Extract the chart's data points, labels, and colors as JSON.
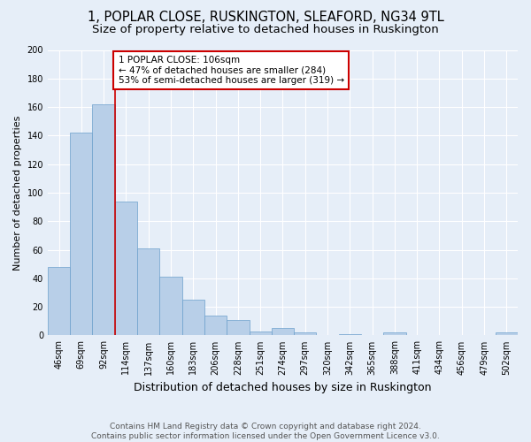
{
  "title1": "1, POPLAR CLOSE, RUSKINGTON, SLEAFORD, NG34 9TL",
  "title2": "Size of property relative to detached houses in Ruskington",
  "xlabel": "Distribution of detached houses by size in Ruskington",
  "ylabel": "Number of detached properties",
  "bar_labels": [
    "46sqm",
    "69sqm",
    "92sqm",
    "114sqm",
    "137sqm",
    "160sqm",
    "183sqm",
    "206sqm",
    "228sqm",
    "251sqm",
    "274sqm",
    "297sqm",
    "320sqm",
    "342sqm",
    "365sqm",
    "388sqm",
    "411sqm",
    "434sqm",
    "456sqm",
    "479sqm",
    "502sqm"
  ],
  "bar_values": [
    48,
    142,
    162,
    94,
    61,
    41,
    25,
    14,
    11,
    3,
    5,
    2,
    0,
    1,
    0,
    2,
    0,
    0,
    0,
    0,
    2
  ],
  "bar_color": "#b8cfe8",
  "bar_edgecolor": "#6ca0cc",
  "property_line_x": 2.5,
  "annotation_text": "1 POPLAR CLOSE: 106sqm\n← 47% of detached houses are smaller (284)\n53% of semi-detached houses are larger (319) →",
  "annotation_box_color": "white",
  "annotation_box_edgecolor": "#cc0000",
  "vline_color": "#cc0000",
  "ylim": [
    0,
    200
  ],
  "yticks": [
    0,
    20,
    40,
    60,
    80,
    100,
    120,
    140,
    160,
    180,
    200
  ],
  "footnote": "Contains HM Land Registry data © Crown copyright and database right 2024.\nContains public sector information licensed under the Open Government Licence v3.0.",
  "bg_color": "#e6eef8",
  "plot_bg_color": "#e6eef8",
  "grid_color": "#ffffff",
  "title1_fontsize": 10.5,
  "title2_fontsize": 9.5,
  "xlabel_fontsize": 9,
  "ylabel_fontsize": 8,
  "tick_fontsize": 7,
  "annot_fontsize": 7.5,
  "footnote_fontsize": 6.5
}
